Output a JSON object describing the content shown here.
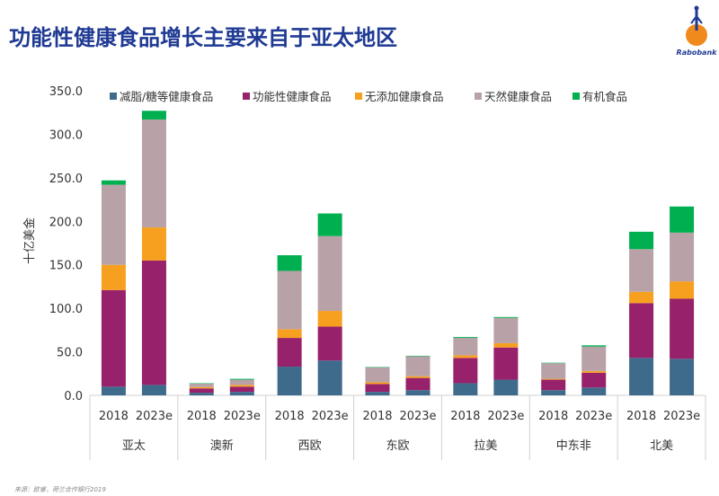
{
  "title": "功能性健康食品增长主要来自于亚太地区",
  "logo_text": "Rabobank",
  "source": "来源：欧睿，荷兰合作银行2019",
  "chart_data": {
    "type": "bar",
    "stacked": true,
    "title": "功能性健康食品增长主要来自于亚太地区",
    "ylabel": "十亿美金",
    "xlabel": "",
    "ylim": [
      0,
      350
    ],
    "yticks": [
      "0.0",
      "50.0",
      "100.0",
      "150.0",
      "200.0",
      "250.0",
      "300.0",
      "350.0"
    ],
    "yticks_values": [
      0,
      50,
      100,
      150,
      200,
      250,
      300,
      350
    ],
    "grid": false,
    "legend_position": "top",
    "regions": [
      "亚太",
      "澳新",
      "西欧",
      "东欧",
      "拉美",
      "中东非",
      "北美"
    ],
    "years": [
      "2018",
      "2023e"
    ],
    "categories": [
      "亚太 2018",
      "亚太 2023e",
      "澳新 2018",
      "澳新 2023e",
      "西欧 2018",
      "西欧 2023e",
      "东欧 2018",
      "东欧 2023e",
      "拉美 2018",
      "拉美 2023e",
      "中东非 2018",
      "中东非 2023e",
      "北美 2018",
      "北美 2023e"
    ],
    "series": [
      {
        "name": "减脂/糖等健康食品",
        "color": "#3e6b8c",
        "values": [
          10,
          12,
          3,
          4,
          33,
          40,
          4,
          6,
          14,
          18,
          6,
          9,
          43,
          42
        ]
      },
      {
        "name": "功能性健康食品",
        "color": "#97216b",
        "values": [
          111,
          143,
          5,
          6,
          33,
          39,
          9,
          14,
          29,
          37,
          12,
          17,
          63,
          69
        ]
      },
      {
        "name": "无添加健康食品",
        "color": "#f7a01f",
        "values": [
          29,
          38,
          1.5,
          2,
          10,
          18,
          2,
          2,
          3,
          5,
          1,
          2,
          13,
          20
        ]
      },
      {
        "name": "天然健康食品",
        "color": "#b8a2a8",
        "values": [
          92,
          124,
          4,
          6,
          67,
          86,
          17,
          23,
          20,
          29,
          18,
          28,
          49,
          56
        ]
      },
      {
        "name": "有机食品",
        "color": "#00b050",
        "values": [
          5,
          10,
          0.5,
          1,
          18,
          26,
          0.5,
          0.5,
          1,
          1,
          0.5,
          1.5,
          20,
          30
        ]
      }
    ]
  }
}
